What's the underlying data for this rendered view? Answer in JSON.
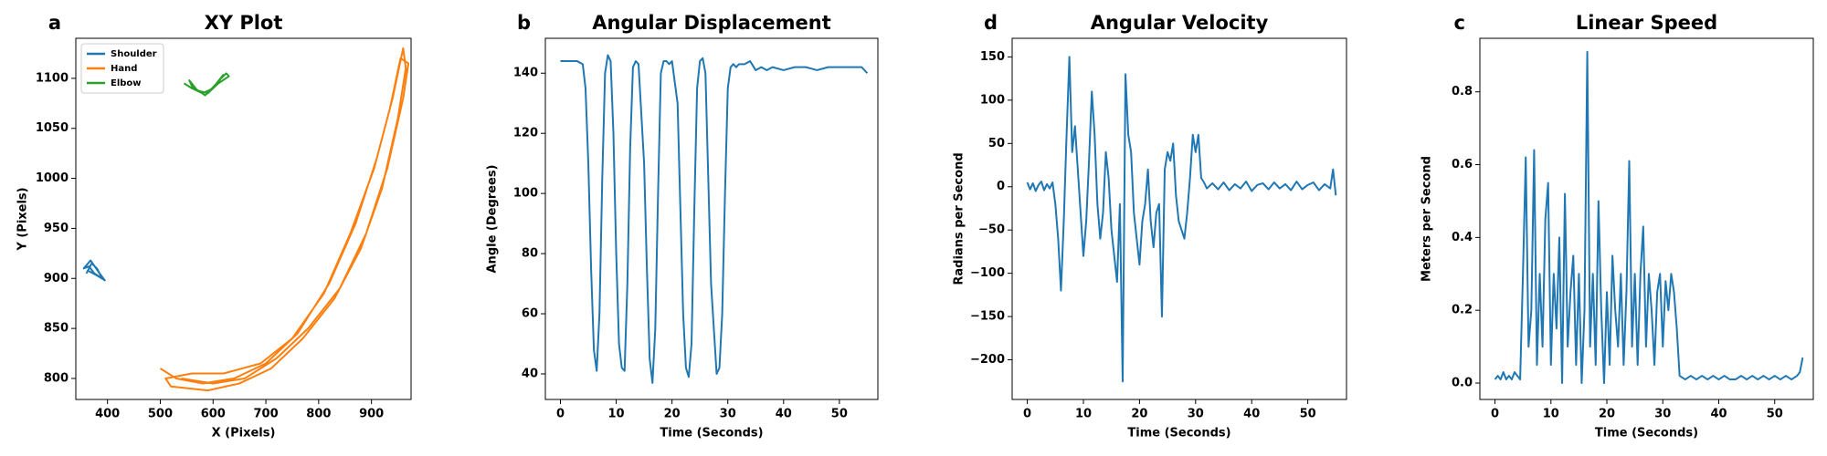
{
  "chart_data": [
    {
      "type": "line",
      "panel_label": "a",
      "title": "XY Plot",
      "xlabel": "X (Pixels)",
      "ylabel": "Y (Pixels)",
      "xlim": [
        340,
        975
      ],
      "ylim": [
        779,
        1140
      ],
      "xticks": [
        400,
        500,
        600,
        700,
        800,
        900
      ],
      "yticks": [
        800,
        850,
        900,
        950,
        1000,
        1050,
        1100
      ],
      "legend": "upper left",
      "series": [
        {
          "name": "Shoulder",
          "color": "#1f77b4",
          "x": [
            360,
            370,
            380,
            390,
            375,
            365,
            355,
            368,
            385,
            395,
            380,
            362
          ],
          "values": [
            905,
            915,
            910,
            900,
            905,
            912,
            910,
            918,
            905,
            898,
            903,
            908
          ]
        },
        {
          "name": "Hand",
          "color": "#ff7f0e",
          "x": [
            500,
            530,
            580,
            640,
            700,
            760,
            820,
            870,
            910,
            940,
            960,
            965,
            950,
            920,
            880,
            830,
            770,
            710,
            650,
            590,
            520,
            510,
            560,
            620,
            690,
            750,
            810,
            860,
            905,
            935,
            955,
            970,
            960,
            930,
            890,
            840,
            780,
            720,
            660,
            600,
            540
          ],
          "values": [
            810,
            800,
            795,
            800,
            815,
            845,
            895,
            955,
            1020,
            1080,
            1130,
            1110,
            1060,
            990,
            930,
            880,
            840,
            810,
            795,
            788,
            792,
            800,
            805,
            805,
            815,
            840,
            885,
            945,
            1010,
            1070,
            1120,
            1115,
            1080,
            1010,
            945,
            890,
            850,
            820,
            800,
            795,
            800
          ]
        },
        {
          "name": "Elbow",
          "color": "#2ca02c",
          "x": [
            545,
            560,
            580,
            600,
            615,
            625,
            630,
            610,
            590,
            570,
            555,
            560,
            585,
            605,
            620
          ],
          "values": [
            1095,
            1090,
            1085,
            1090,
            1100,
            1105,
            1102,
            1095,
            1085,
            1088,
            1098,
            1092,
            1083,
            1094,
            1104
          ]
        }
      ]
    },
    {
      "type": "line",
      "panel_label": "b",
      "title": "Angular Displacement",
      "xlabel": "Time (Seconds)",
      "ylabel": "Angle (Degrees)",
      "xlim": [
        -2.7,
        56.9
      ],
      "ylim": [
        31.5,
        151.6
      ],
      "xticks": [
        0,
        10,
        20,
        30,
        40,
        50
      ],
      "yticks": [
        40,
        60,
        80,
        100,
        120,
        140
      ],
      "x": [
        0,
        1,
        2,
        3,
        4,
        4.5,
        5,
        5.5,
        6,
        6.5,
        7,
        7.5,
        8,
        8.5,
        9,
        9.5,
        10,
        10.5,
        11,
        11.5,
        12,
        12.5,
        13,
        13.5,
        14,
        15,
        15.5,
        16,
        16.5,
        17,
        17.5,
        18,
        18.5,
        19,
        19.5,
        20,
        21,
        21.5,
        22,
        22.5,
        23,
        23.5,
        24,
        24.5,
        25,
        25.5,
        26,
        26.5,
        27,
        28,
        28.5,
        29,
        29.5,
        30,
        30.5,
        31,
        31.5,
        32,
        33,
        34,
        35,
        36,
        37,
        38,
        40,
        42,
        44,
        46,
        48,
        50,
        52,
        54,
        55
      ],
      "series": [
        {
          "color": "#1f77b4",
          "values": [
            144,
            144,
            144,
            144,
            143,
            135,
            110,
            75,
            48,
            41,
            60,
            105,
            140,
            146,
            144,
            120,
            80,
            50,
            42,
            41,
            70,
            115,
            142,
            144,
            143,
            110,
            75,
            45,
            37,
            55,
            100,
            140,
            144,
            144,
            143,
            144,
            130,
            95,
            60,
            42,
            39,
            50,
            95,
            135,
            144,
            145,
            140,
            105,
            70,
            40,
            42,
            60,
            100,
            135,
            142,
            143,
            142,
            143,
            143,
            144,
            141,
            142,
            141,
            142,
            141,
            142,
            142,
            141,
            142,
            142,
            142,
            142,
            140
          ]
        }
      ]
    },
    {
      "type": "line",
      "panel_label": "d",
      "title": "Angular Velocity",
      "xlabel": "Time (Seconds)",
      "ylabel": "Radians per Second",
      "xlim": [
        -2.7,
        56.9
      ],
      "ylim": [
        -245.8,
        171.5
      ],
      "xticks": [
        0,
        10,
        20,
        30,
        40,
        50
      ],
      "yticks": [
        {
          "value": -200,
          "label": "−200"
        },
        {
          "value": -150,
          "label": "−150"
        },
        {
          "value": -100,
          "label": "−100"
        },
        {
          "value": -50,
          "label": "−50"
        },
        0,
        50,
        100,
        150
      ],
      "x": [
        0,
        0.5,
        1,
        1.5,
        2,
        2.5,
        3,
        3.5,
        4,
        4.5,
        5,
        5.5,
        6,
        6.5,
        7,
        7.5,
        8,
        8.5,
        9,
        9.5,
        10,
        10.5,
        11,
        11.5,
        12,
        12.5,
        13,
        13.5,
        14,
        14.5,
        15,
        15.5,
        16,
        16.5,
        17,
        17.5,
        18,
        18.5,
        19,
        19.5,
        20,
        20.5,
        21,
        21.5,
        22,
        22.5,
        23,
        23.5,
        24,
        24.5,
        25,
        25.5,
        26,
        26.5,
        27,
        27.5,
        28,
        28.5,
        29,
        29.5,
        30,
        30.5,
        31,
        31.5,
        32,
        33,
        34,
        35,
        36,
        37,
        38,
        39,
        40,
        41,
        42,
        43,
        44,
        45,
        46,
        47,
        48,
        49,
        50,
        51,
        52,
        53,
        54,
        54.5,
        55
      ],
      "series": [
        {
          "color": "#1f77b4",
          "values": [
            5,
            -3,
            4,
            -5,
            2,
            6,
            -4,
            3,
            -2,
            5,
            -20,
            -60,
            -120,
            -40,
            60,
            150,
            40,
            70,
            20,
            -30,
            -80,
            -40,
            30,
            110,
            60,
            -20,
            -60,
            -30,
            40,
            10,
            -50,
            -80,
            -110,
            -20,
            -225,
            130,
            60,
            40,
            -30,
            -60,
            -90,
            -40,
            -20,
            20,
            -40,
            -70,
            -30,
            -20,
            -150,
            20,
            40,
            30,
            50,
            -10,
            -40,
            -50,
            -60,
            -30,
            10,
            60,
            40,
            60,
            10,
            5,
            -2,
            4,
            -3,
            5,
            -4,
            3,
            -2,
            6,
            -5,
            2,
            4,
            -3,
            5,
            -2,
            3,
            -4,
            6,
            -3,
            2,
            5,
            -4,
            3,
            -2,
            20,
            -10
          ]
        }
      ]
    },
    {
      "type": "line",
      "panel_label": "c",
      "title": "Linear Speed",
      "xlabel": "Time (Seconds)",
      "ylabel": "Meters per Second",
      "xlim": [
        -2.7,
        56.9
      ],
      "ylim": [
        -0.045,
        0.947
      ],
      "xticks": [
        0,
        10,
        20,
        30,
        40,
        50
      ],
      "yticks": [
        {
          "value": 0,
          "label": "0.0"
        },
        0.2,
        0.4,
        0.6,
        0.8
      ],
      "x": [
        0,
        0.5,
        1,
        1.5,
        2,
        2.5,
        3,
        3.5,
        4,
        4.5,
        5,
        5.5,
        6,
        6.5,
        7,
        7.5,
        8,
        8.5,
        9,
        9.5,
        10,
        10.5,
        11,
        11.5,
        12,
        12.5,
        13,
        13.5,
        14,
        14.5,
        15,
        15.5,
        16,
        16.5,
        17,
        17.5,
        18,
        18.5,
        19,
        19.5,
        20,
        20.5,
        21,
        21.5,
        22,
        22.5,
        23,
        23.5,
        24,
        24.5,
        25,
        25.5,
        26,
        26.5,
        27,
        27.5,
        28,
        28.5,
        29,
        29.5,
        30,
        30.5,
        31,
        31.5,
        32,
        32.5,
        33,
        34,
        35,
        36,
        37,
        38,
        39,
        40,
        41,
        42,
        43,
        44,
        45,
        46,
        47,
        48,
        49,
        50,
        51,
        52,
        53,
        54,
        54.5,
        55
      ],
      "series": [
        {
          "color": "#1f77b4",
          "values": [
            0.01,
            0.02,
            0.01,
            0.03,
            0.01,
            0.02,
            0.01,
            0.03,
            0.02,
            0.01,
            0.3,
            0.62,
            0.1,
            0.2,
            0.64,
            0.05,
            0.3,
            0.1,
            0.45,
            0.55,
            0.05,
            0.3,
            0.15,
            0.4,
            0,
            0.52,
            0.1,
            0.25,
            0.35,
            0.05,
            0.3,
            0,
            0.2,
            0.91,
            0.1,
            0.3,
            0.05,
            0.5,
            0.2,
            0,
            0.25,
            0.05,
            0.35,
            0.2,
            0.1,
            0.3,
            0.05,
            0.25,
            0.61,
            0.1,
            0.3,
            0.05,
            0.3,
            0.43,
            0.1,
            0.3,
            0.2,
            0.05,
            0.25,
            0.3,
            0.1,
            0.28,
            0.2,
            0.3,
            0.25,
            0.15,
            0.02,
            0.01,
            0.02,
            0.01,
            0.02,
            0.01,
            0.02,
            0.01,
            0.02,
            0.01,
            0.01,
            0.02,
            0.01,
            0.02,
            0.01,
            0.02,
            0.01,
            0.02,
            0.01,
            0.02,
            0.01,
            0.02,
            0.03,
            0.07
          ]
        }
      ]
    }
  ]
}
